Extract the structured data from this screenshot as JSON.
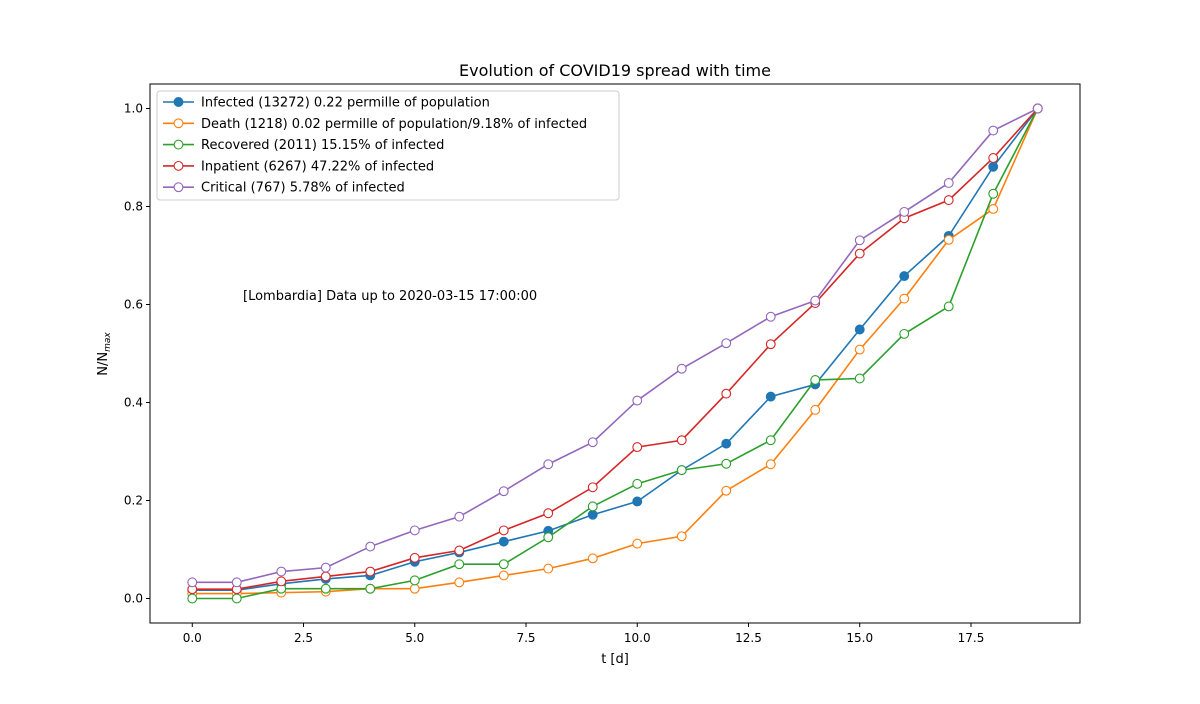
{
  "chart_data": {
    "type": "line",
    "title": "Evolution of COVID19 spread with time",
    "xlabel": "t [d]",
    "ylabel_main": "N/N",
    "ylabel_sub": "max",
    "annotation": "[Lombardia] Data up to 2020-03-15 17:00:00",
    "xlim": [
      -0.95,
      19.95
    ],
    "ylim": [
      -0.05,
      1.05
    ],
    "xticks": [
      0.0,
      2.5,
      5.0,
      7.5,
      10.0,
      12.5,
      15.0,
      17.5
    ],
    "xtick_labels": [
      "0.0",
      "2.5",
      "5.0",
      "7.5",
      "10.0",
      "12.5",
      "15.0",
      "17.5"
    ],
    "yticks": [
      0.0,
      0.2,
      0.4,
      0.6,
      0.8,
      1.0
    ],
    "ytick_labels": [
      "0.0",
      "0.2",
      "0.4",
      "0.6",
      "0.8",
      "1.0"
    ],
    "grid": false,
    "legend_position": "top-left",
    "x": [
      0,
      1,
      2,
      3,
      4,
      5,
      6,
      7,
      8,
      9,
      10,
      11,
      12,
      13,
      14,
      15,
      16,
      17,
      18,
      19
    ],
    "series": [
      {
        "name": "Infected (13272) 0.22 permille of population",
        "color": "#1f77b4",
        "marker": "filled",
        "values": [
          0.017,
          0.017,
          0.03,
          0.04,
          0.047,
          0.075,
          0.094,
          0.116,
          0.138,
          0.171,
          0.198,
          0.262,
          0.316,
          0.412,
          0.437,
          0.549,
          0.658,
          0.74,
          0.881,
          1.0
        ]
      },
      {
        "name": "Death (1218) 0.02 permille of population/9.18% of infected",
        "color": "#ff7f0e",
        "marker": "hollow",
        "values": [
          0.01,
          0.01,
          0.012,
          0.014,
          0.02,
          0.02,
          0.033,
          0.047,
          0.061,
          0.082,
          0.112,
          0.127,
          0.22,
          0.274,
          0.385,
          0.508,
          0.612,
          0.732,
          0.795,
          1.0
        ]
      },
      {
        "name": "Recovered (2011) 15.15% of infected",
        "color": "#2ca02c",
        "marker": "hollow",
        "values": [
          0.0,
          0.0,
          0.02,
          0.02,
          0.02,
          0.037,
          0.07,
          0.07,
          0.125,
          0.188,
          0.234,
          0.262,
          0.275,
          0.323,
          0.446,
          0.449,
          0.54,
          0.596,
          0.826,
          1.0
        ]
      },
      {
        "name": "Inpatient (6267) 47.22% of infected",
        "color": "#d62728",
        "marker": "hollow",
        "values": [
          0.019,
          0.019,
          0.035,
          0.045,
          0.055,
          0.083,
          0.098,
          0.139,
          0.174,
          0.227,
          0.309,
          0.323,
          0.418,
          0.519,
          0.603,
          0.704,
          0.776,
          0.813,
          0.899,
          1.0
        ]
      },
      {
        "name": "Critical (767) 5.78% of infected",
        "color": "#9467bd",
        "marker": "hollow",
        "values": [
          0.033,
          0.033,
          0.055,
          0.063,
          0.106,
          0.139,
          0.167,
          0.219,
          0.274,
          0.319,
          0.404,
          0.469,
          0.521,
          0.575,
          0.608,
          0.731,
          0.789,
          0.848,
          0.955,
          1.0
        ]
      }
    ]
  }
}
